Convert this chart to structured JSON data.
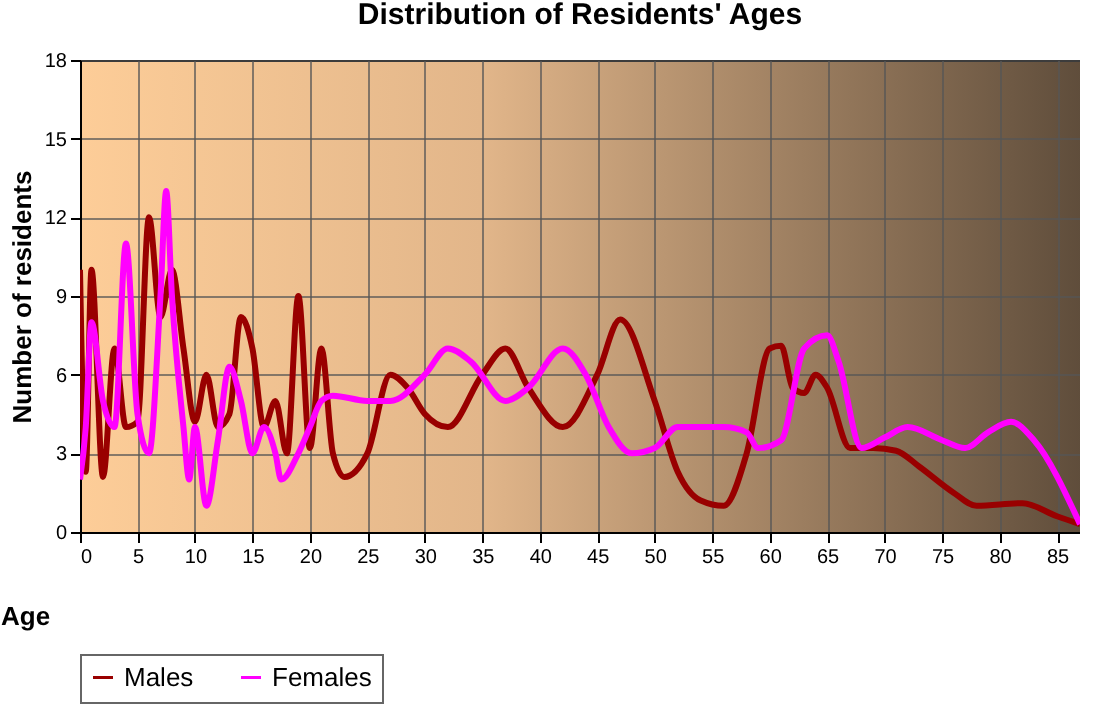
{
  "chart_data": {
    "type": "line",
    "title": "Distribution of Residents' Ages",
    "xlabel": "Age",
    "ylabel": "Number of residents",
    "xlim": [
      0,
      87
    ],
    "xticks": [
      0,
      5,
      10,
      15,
      20,
      25,
      30,
      35,
      40,
      45,
      50,
      55,
      60,
      65,
      70,
      75,
      80,
      85
    ],
    "ylim": [
      0,
      18
    ],
    "yticks": [
      0,
      3,
      6,
      9,
      12,
      15,
      18
    ],
    "grid": true,
    "legend": "bottom",
    "series": [
      {
        "name": "Males",
        "color": "#990000",
        "x": [
          0,
          0.5,
          1,
          2,
          3,
          4,
          5,
          6,
          7,
          8,
          9,
          10,
          11,
          12,
          13,
          14,
          15,
          16,
          17,
          18,
          19,
          20,
          21,
          22,
          23,
          25,
          27,
          28.5,
          30,
          32,
          35,
          37,
          39,
          42,
          45,
          47,
          50,
          52,
          54,
          56,
          58,
          60,
          61,
          62,
          63,
          64,
          65,
          67,
          69,
          71,
          73,
          76,
          78,
          82,
          85,
          87
        ],
        "values": [
          10,
          2.3,
          10,
          2.1,
          7,
          4,
          4.2,
          12,
          8.2,
          10,
          7,
          4.2,
          6,
          4,
          4.5,
          8.2,
          7,
          4,
          5,
          3,
          9,
          3.2,
          7,
          3,
          2.1,
          3,
          6,
          5.5,
          4.5,
          4,
          6,
          7,
          5.5,
          4,
          6,
          8.1,
          5,
          2.3,
          1.2,
          1,
          3,
          7,
          7.1,
          5.5,
          5.3,
          6,
          5.5,
          3.2,
          3.2,
          3.1,
          2.5,
          1.5,
          1,
          1.1,
          0.6,
          0.3
        ]
      },
      {
        "name": "Females",
        "color": "#ff00ff",
        "x": [
          0,
          0.5,
          1,
          2,
          3,
          4,
          5,
          6,
          7,
          7.5,
          8,
          9,
          9.5,
          10,
          11,
          12,
          13,
          14,
          15,
          16,
          17,
          17.5,
          19,
          20,
          21,
          22,
          25,
          27,
          30,
          32,
          34,
          37,
          39,
          42,
          44,
          46,
          48,
          50,
          52,
          56,
          58,
          59,
          61,
          63,
          65,
          66,
          68,
          70,
          72,
          75,
          77,
          79,
          81,
          83,
          87
        ],
        "values": [
          2,
          4,
          8,
          5,
          4,
          11,
          4.5,
          3,
          9,
          13,
          9,
          4,
          2,
          4,
          1,
          3.5,
          6.3,
          5,
          3,
          4,
          3,
          2,
          3,
          4,
          5,
          5.2,
          5,
          5,
          6,
          7,
          6.5,
          5,
          5.5,
          7,
          6,
          4,
          3,
          3.2,
          4,
          4,
          3.8,
          3.2,
          3.5,
          7,
          7.5,
          6.5,
          3.2,
          3.6,
          4,
          3.5,
          3.2,
          3.8,
          4.2,
          3.5,
          0.3
        ]
      }
    ]
  }
}
